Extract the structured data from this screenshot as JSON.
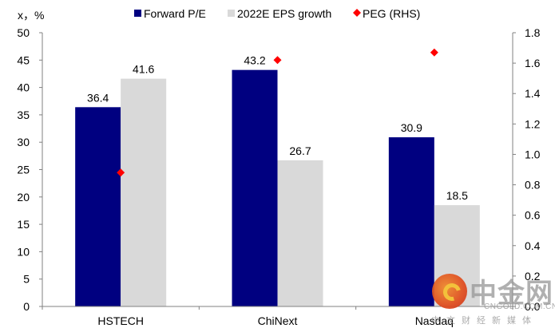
{
  "chart_data": {
    "type": "bar",
    "title": "",
    "categories": [
      "HSTECH",
      "ChiNext",
      "Nasdaq"
    ],
    "series": [
      {
        "name": "Forward P/E",
        "kind": "bar",
        "axis": "left",
        "color": "#000080",
        "values": [
          36.4,
          43.2,
          30.9
        ],
        "labels": [
          "36.4",
          "43.2",
          "30.9"
        ]
      },
      {
        "name": "2022E EPS growth",
        "kind": "bar",
        "axis": "left",
        "color": "#d9d9d9",
        "values": [
          41.6,
          26.7,
          18.5
        ],
        "labels": [
          "41.6",
          "26.7",
          "18.5"
        ]
      },
      {
        "name": "PEG (RHS)",
        "kind": "scatter",
        "axis": "right",
        "color": "#ff0000",
        "values": [
          0.88,
          1.62,
          1.67
        ]
      }
    ],
    "ylabel": "x, %",
    "y_left": {
      "min": 0,
      "max": 50,
      "step": 5,
      "ticks": [
        "0",
        "5",
        "10",
        "15",
        "20",
        "25",
        "30",
        "35",
        "40",
        "45",
        "50"
      ]
    },
    "y_right": {
      "min": 0,
      "max": 1.8,
      "step": 0.2,
      "ticks": [
        "0.0",
        "0.2",
        "0.4",
        "0.6",
        "0.8",
        "1.0",
        "1.2",
        "1.4",
        "1.6",
        "1.8"
      ]
    },
    "grid": false,
    "legend": {
      "position": "top",
      "entries": [
        "Forward P/E",
        "2022E EPS growth",
        "PEG (RHS)"
      ]
    }
  },
  "axis_unit_label": "x，%",
  "watermark": {
    "brand_cn": "中金网",
    "brand_en": "CNGOLD.COM.CN",
    "tagline": "中文财经新媒体"
  }
}
